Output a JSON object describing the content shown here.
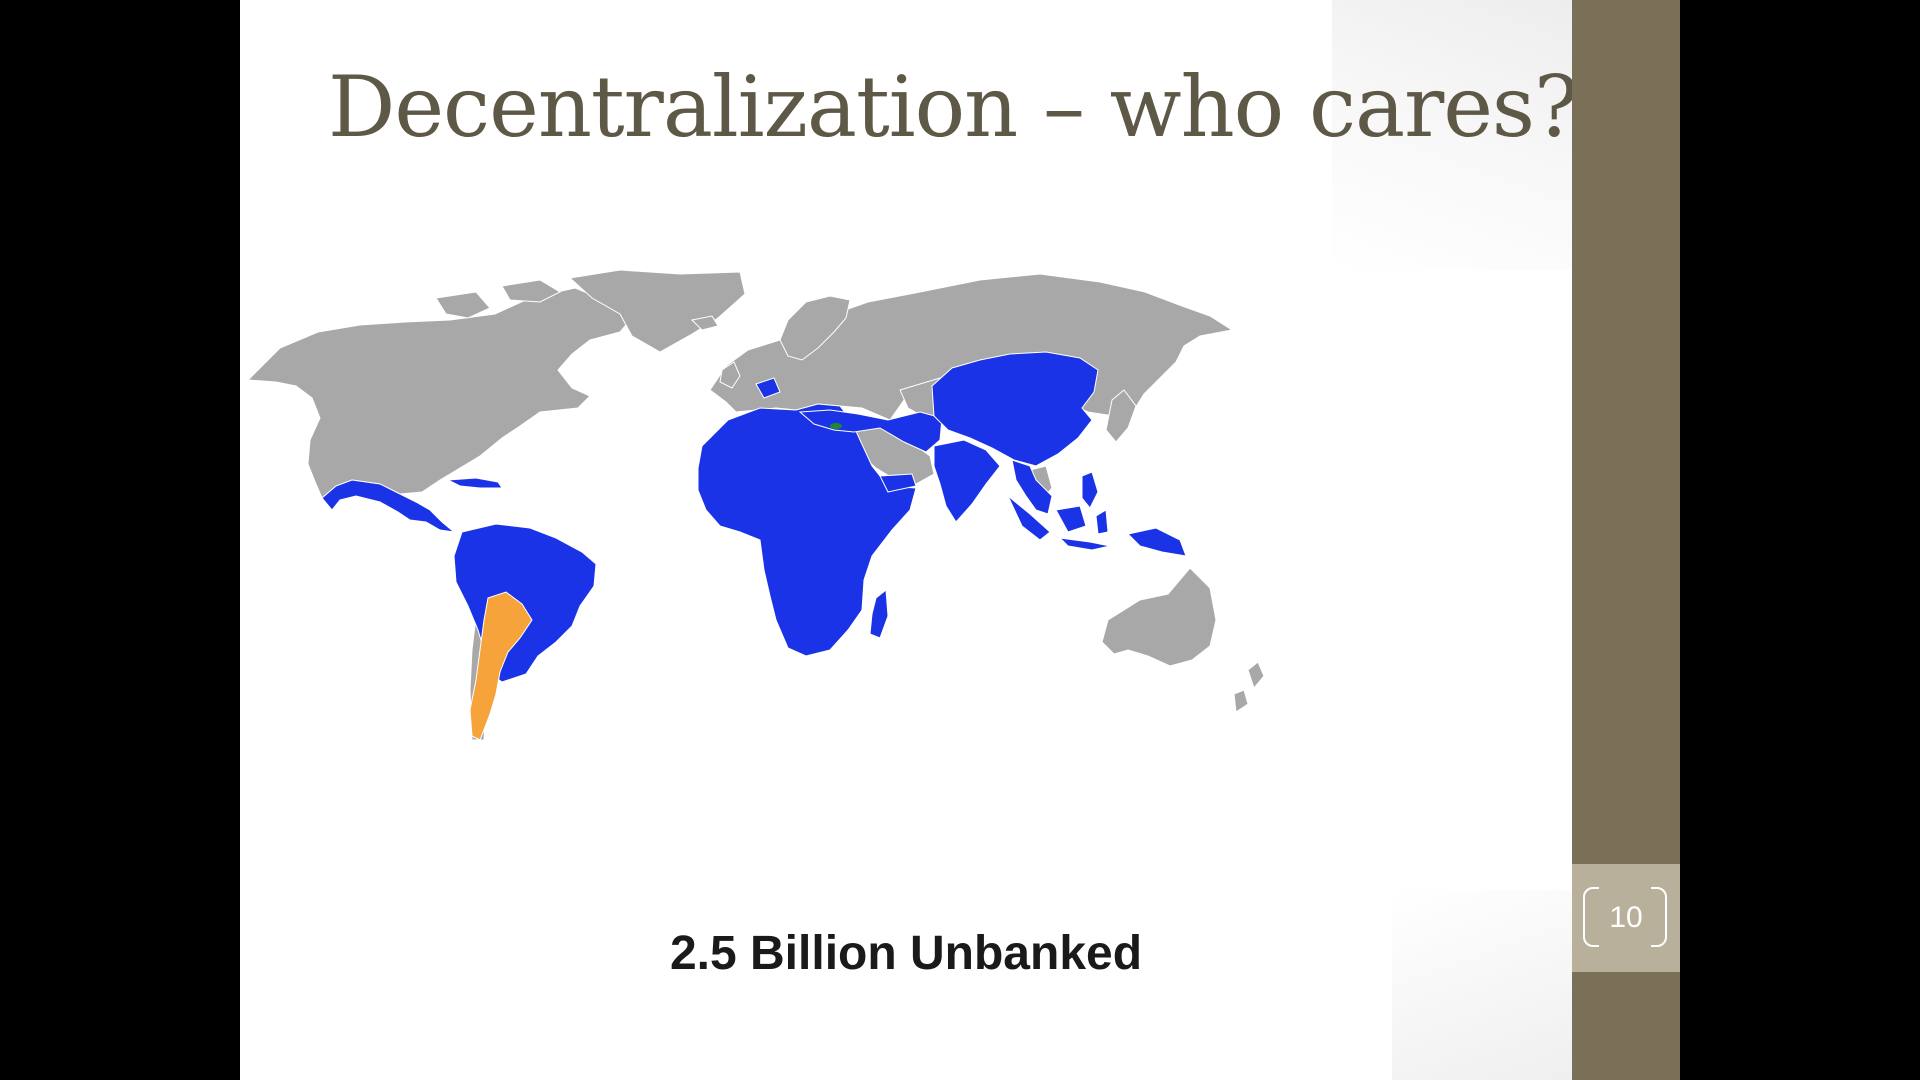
{
  "slide": {
    "title": "Decentralization – who cares?",
    "caption": "2.5 Billion Unbanked",
    "page_number": "10"
  },
  "map": {
    "colors": {
      "background": "#ffffff",
      "other": "#a8a8a8",
      "unbanked": "#1a33e6",
      "argentina": "#f5a33a",
      "highlight": "#1e8a2a",
      "border": "#ffffff"
    }
  },
  "theme": {
    "sidebar": "#7a7057",
    "page_box": "#b8b09a",
    "title_color": "#5e5846"
  }
}
